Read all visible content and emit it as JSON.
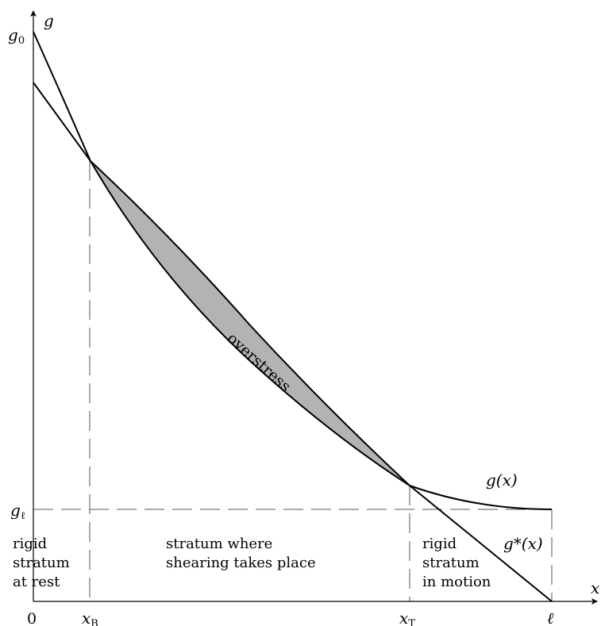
{
  "axes": {
    "x_label": "x",
    "y_label": "g",
    "origin_label": "0",
    "y_ticks": {
      "g0": {
        "base": "g",
        "sub": "0"
      },
      "gl": {
        "base": "g",
        "sub": "ℓ"
      }
    },
    "x_ticks": {
      "xB": {
        "base": "x",
        "sub": "B"
      },
      "xT": {
        "base": "x",
        "sub": "T"
      },
      "ell": "ℓ"
    }
  },
  "curves": {
    "g_label": "g(x)",
    "gstar_label": "g*(x)"
  },
  "region_label": "overstress",
  "strata": {
    "rest": [
      "rigid",
      "stratum",
      "at rest"
    ],
    "shear": [
      "stratum where",
      "shearing takes place"
    ],
    "motion": [
      "rigid",
      "stratum",
      "in motion"
    ]
  },
  "colors": {
    "overstress_fill": "#b3b3b3",
    "stroke": "#000000",
    "dash": "#555555"
  }
}
